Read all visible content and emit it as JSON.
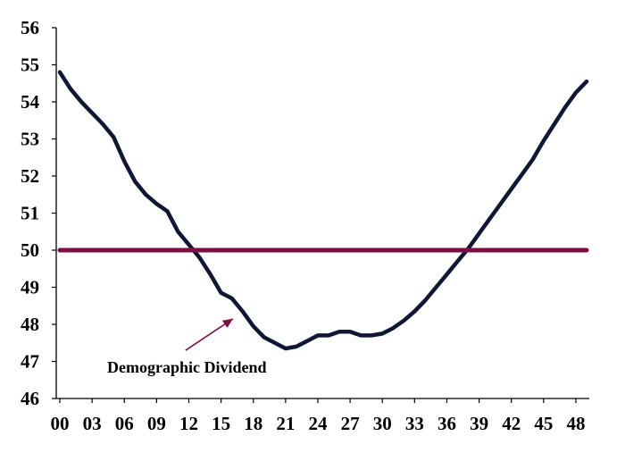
{
  "chart_data": {
    "type": "line",
    "title": "",
    "xlabel": "",
    "ylabel": "",
    "ylim": [
      46,
      56
    ],
    "xlim": [
      0,
      49
    ],
    "yticks": [
      "46",
      "47",
      "48",
      "49",
      "50",
      "51",
      "52",
      "53",
      "54",
      "55",
      "56"
    ],
    "xticks": [
      "00",
      "03",
      "06",
      "09",
      "12",
      "15",
      "18",
      "21",
      "24",
      "27",
      "30",
      "33",
      "36",
      "39",
      "42",
      "45",
      "48"
    ],
    "grid": false,
    "legend": "none",
    "series": [
      {
        "color": "#0f1735",
        "x": [
          0,
          1,
          2,
          3,
          4,
          5,
          6,
          7,
          8,
          9,
          10,
          11,
          12,
          13,
          14,
          15,
          16,
          17,
          18,
          19,
          20,
          21,
          22,
          23,
          24,
          25,
          26,
          27,
          28,
          29,
          30,
          31,
          32,
          33,
          34,
          35,
          36,
          37,
          38,
          39,
          40,
          41,
          42,
          43,
          44,
          45,
          46,
          47,
          48,
          49
        ],
        "values": [
          54.8,
          54.35,
          54.0,
          53.7,
          53.4,
          53.05,
          52.4,
          51.85,
          51.5,
          51.25,
          51.05,
          50.5,
          50.15,
          49.8,
          49.35,
          48.85,
          48.7,
          48.35,
          47.95,
          47.65,
          47.5,
          47.35,
          47.4,
          47.55,
          47.7,
          47.7,
          47.8,
          47.8,
          47.7,
          47.7,
          47.75,
          47.9,
          48.1,
          48.35,
          48.65,
          49.0,
          49.35,
          49.7,
          50.05,
          50.45,
          50.85,
          51.25,
          51.65,
          52.05,
          52.45,
          52.95,
          53.4,
          53.85,
          54.25,
          54.55
        ]
      },
      {
        "color": "#7d0c45",
        "x": [
          0,
          49
        ],
        "values": [
          50,
          50
        ]
      }
    ],
    "annotations": [
      {
        "text": "Demographic Dividend",
        "x": 4.4,
        "y": 46.7,
        "arrow_from": [
          11.7,
          47.3
        ],
        "arrow_to": [
          16.1,
          48.15
        ]
      }
    ]
  }
}
